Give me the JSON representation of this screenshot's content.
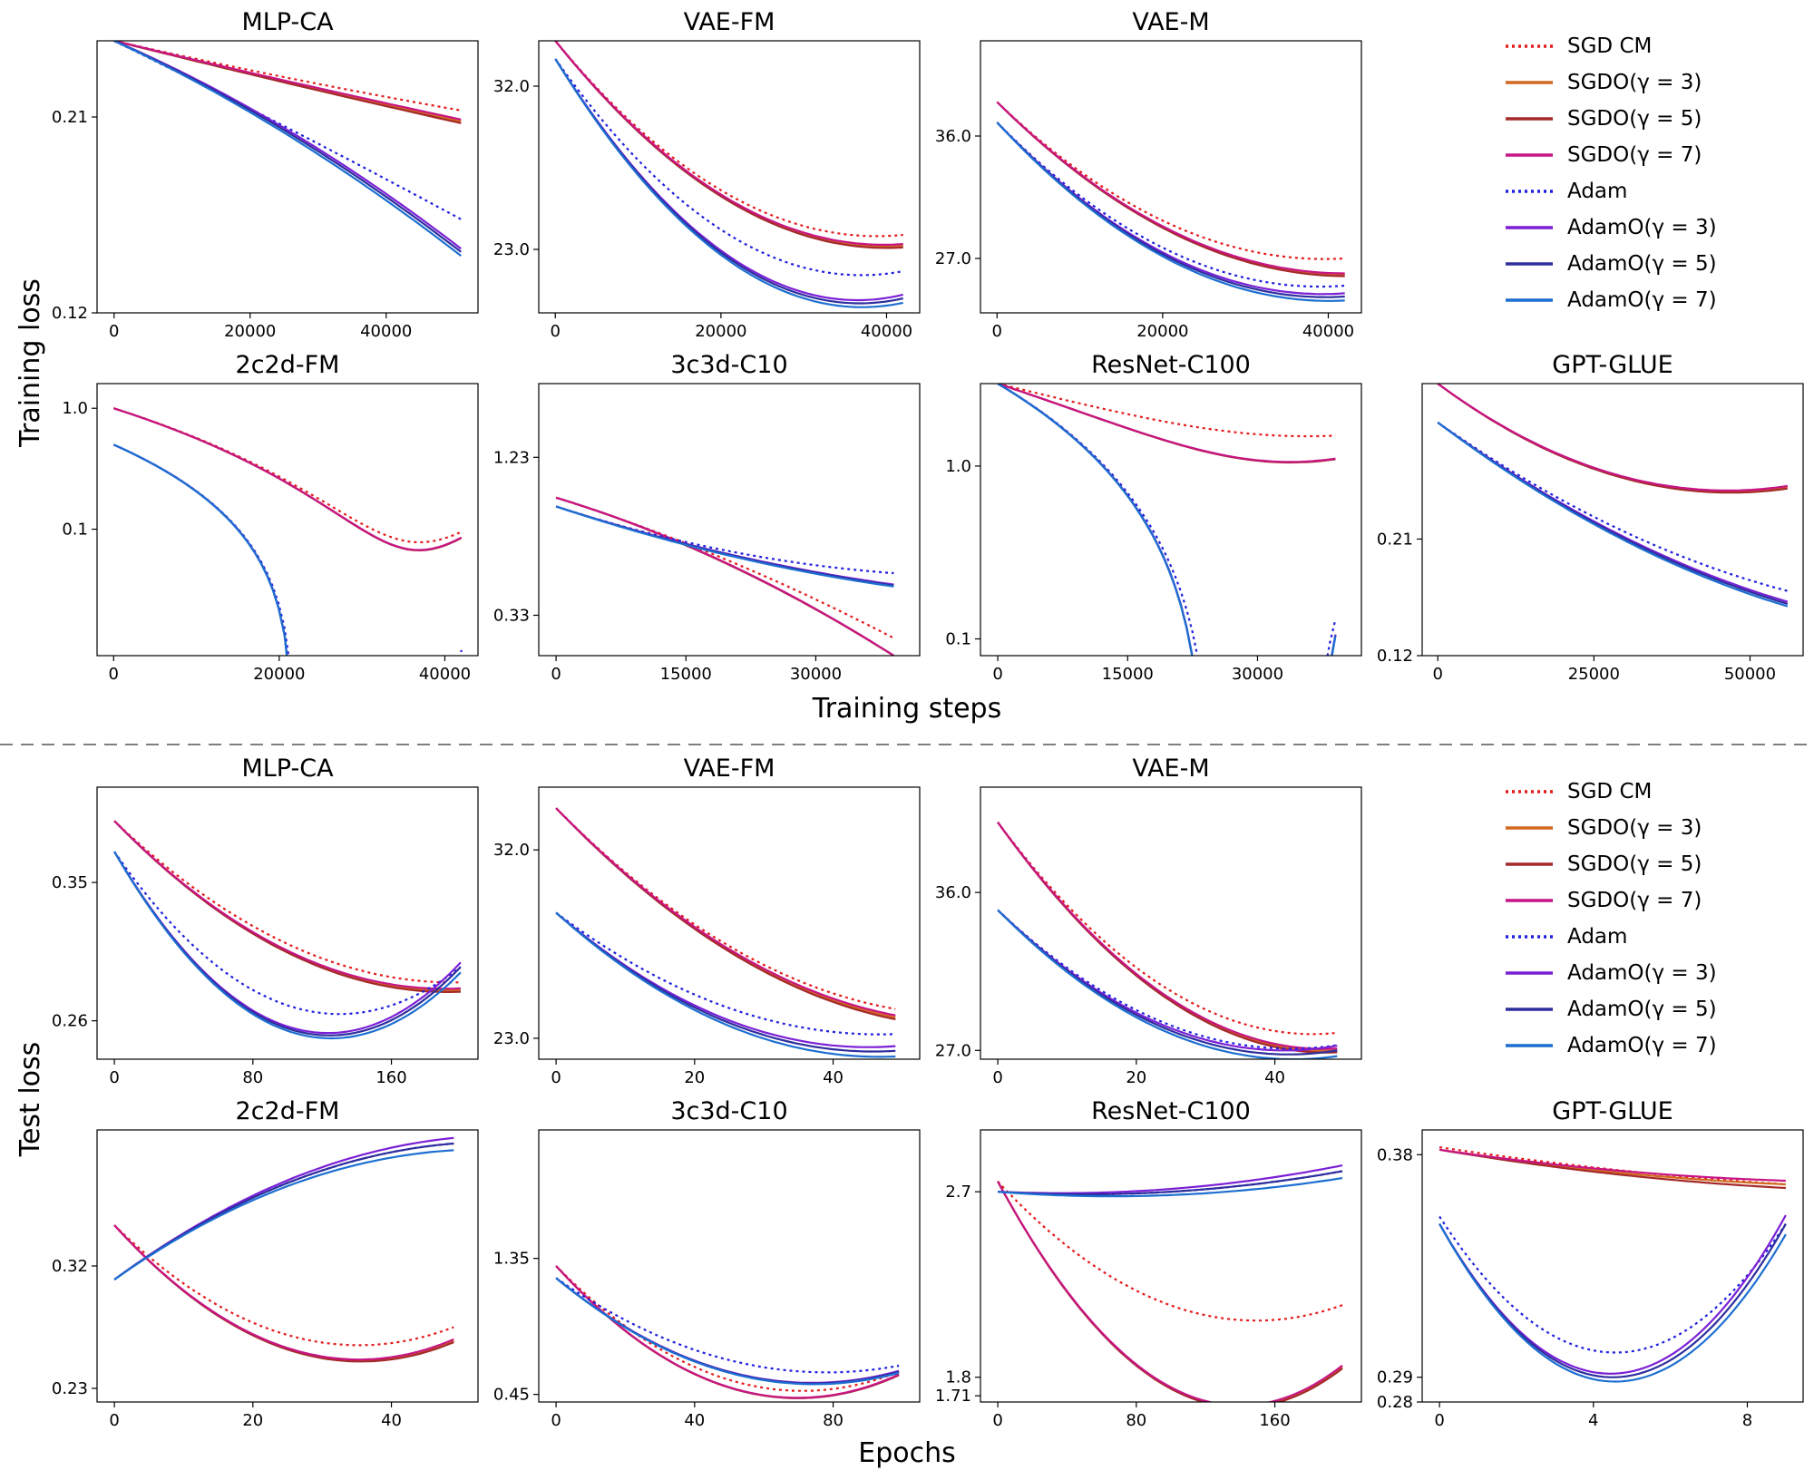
{
  "figure": {
    "top_ylabel": "Training loss",
    "top_xlabel": "Training steps",
    "bottom_ylabel": "Test loss",
    "bottom_xlabel": "Epochs"
  },
  "legend": [
    {
      "label": "SGD CM",
      "color": "#e41a1c",
      "dash": "dotted"
    },
    {
      "label": "SGDO(γ = 3)",
      "color": "#d2691e",
      "dash": "solid"
    },
    {
      "label": "SGDO(γ = 5)",
      "color": "#a52a2a",
      "dash": "solid"
    },
    {
      "label": "SGDO(γ = 7)",
      "color": "#c71585",
      "dash": "solid"
    },
    {
      "label": "Adam",
      "color": "#1f1fe0",
      "dash": "dotted"
    },
    {
      "label": "AdamO(γ = 3)",
      "color": "#7b1fd6",
      "dash": "solid"
    },
    {
      "label": "AdamO(γ = 5)",
      "color": "#2e2e9e",
      "dash": "solid"
    },
    {
      "label": "AdamO(γ = 7)",
      "color": "#1c6fd1",
      "dash": "solid"
    }
  ],
  "chart_data": [
    {
      "type": "line",
      "panel": "train",
      "title": "MLP-CA",
      "xlim": [
        -2500,
        53500
      ],
      "xticks": [
        0,
        20000,
        40000
      ],
      "ylim": [
        0.12,
        0.245
      ],
      "ytick_values": [
        0.21,
        0.12
      ],
      "ytick_labels": [
        "0.21",
        "0.12"
      ],
      "xmax": 51000,
      "curves": {
        "sgd": [
          0.245,
          0.228,
          0.213
        ],
        "sgdo": [
          0.245,
          0.226,
          0.208
        ],
        "adam": [
          0.245,
          0.205,
          0.163
        ],
        "adamo": [
          0.245,
          0.203,
          0.148
        ]
      }
    },
    {
      "type": "line",
      "panel": "train",
      "title": "VAE-FM",
      "xlim": [
        -2000,
        44000
      ],
      "xticks": [
        0,
        20000,
        40000
      ],
      "ylim": [
        19.5,
        34.5
      ],
      "ytick_values": [
        32.0,
        23.0
      ],
      "ytick_labels": [
        "32.0",
        "23.0"
      ],
      "xmax": 42000,
      "curves": {
        "sgd": [
          34.5,
          26.0,
          23.8
        ],
        "sgdo": [
          34.5,
          25.7,
          23.2
        ],
        "adam": [
          33.5,
          23.8,
          21.8
        ],
        "adamo": [
          33.5,
          22.5,
          20.3
        ]
      }
    },
    {
      "type": "line",
      "panel": "train",
      "title": "VAE-M",
      "xlim": [
        -2000,
        44000
      ],
      "xticks": [
        0,
        20000,
        40000
      ],
      "ylim": [
        23.0,
        43.0
      ],
      "ytick_values": [
        36.0,
        27.0
      ],
      "ytick_labels": [
        "36.0",
        "27.0"
      ],
      "xmax": 42000,
      "curves": {
        "sgd": [
          38.5,
          29.5,
          27.0
        ],
        "sgdo": [
          38.5,
          29.0,
          25.8
        ],
        "adam": [
          37.0,
          27.5,
          25.0
        ],
        "adamo": [
          37.0,
          27.0,
          24.2
        ]
      }
    },
    {
      "type": "line",
      "panel": "train",
      "title": "2c2d-FM",
      "xlim": [
        -2000,
        44000
      ],
      "xticks": [
        0,
        20000,
        40000
      ],
      "ylim": [
        0.009,
        1.6
      ],
      "yscale": "log",
      "ytick_values": [
        1.0,
        0.1
      ],
      "ytick_labels": [
        "1.0",
        "0.1"
      ],
      "xmax": 42000,
      "curves": {
        "sgd": [
          1.0,
          0.25,
          0.095
        ],
        "sgdo": [
          1.0,
          0.24,
          0.085
        ],
        "adam": [
          0.5,
          0.011,
          0.01
        ],
        "adamo": [
          0.5,
          0.009,
          0.008
        ]
      }
    },
    {
      "type": "line",
      "panel": "train",
      "title": "3c3d-C10",
      "xlim": [
        -2000,
        42000
      ],
      "xticks": [
        0,
        15000,
        30000
      ],
      "ylim": [
        0.1,
        1.65
      ],
      "ytick_values": [
        1.23,
        0.33
      ],
      "ytick_labels": [
        "1.23",
        "0.33"
      ],
      "xmax": 39000,
      "curves": {
        "sgd": [
          1.0,
          0.65,
          0.2
        ],
        "sgdo": [
          1.0,
          0.63,
          0.1
        ],
        "adam": [
          0.95,
          0.7,
          0.57
        ],
        "adamo": [
          0.95,
          0.68,
          0.5
        ]
      }
    },
    {
      "type": "line",
      "panel": "train",
      "title": "ResNet-C100",
      "xlim": [
        -2000,
        42000
      ],
      "xticks": [
        0,
        15000,
        30000
      ],
      "ylim": [
        0.08,
        3.0
      ],
      "yscale": "log",
      "ytick_values": [
        1.0,
        0.1
      ],
      "ytick_labels": [
        "1.0",
        "0.1"
      ],
      "xmax": 39000,
      "curves": {
        "sgd": [
          3.0,
          1.8,
          1.5
        ],
        "sgdo": [
          3.0,
          1.4,
          1.1
        ],
        "adam": [
          3.0,
          0.3,
          0.13
        ],
        "adamo": [
          3.0,
          0.27,
          0.105
        ]
      }
    },
    {
      "type": "line",
      "panel": "train",
      "title": "GPT-GLUE",
      "xlim": [
        -2500,
        58500
      ],
      "xticks": [
        0,
        25000,
        50000
      ],
      "ylim": [
        0.12,
        0.33
      ],
      "ytick_values": [
        0.21,
        0.12
      ],
      "ytick_labels": [
        "0.21",
        "0.12"
      ],
      "xmax": 56000,
      "curves": {
        "sgd": [
          0.33,
          0.26,
          0.25
        ],
        "sgdo": [
          0.33,
          0.26,
          0.25
        ],
        "adam": [
          0.3,
          0.22,
          0.17
        ],
        "adamo": [
          0.3,
          0.215,
          0.16
        ]
      }
    },
    {
      "type": "line",
      "panel": "test",
      "title": "MLP-CA",
      "xlim": [
        -10,
        210
      ],
      "xticks": [
        0,
        80,
        160
      ],
      "ylim": [
        0.235,
        0.412
      ],
      "ytick_values": [
        0.35,
        0.26
      ],
      "ytick_labels": [
        "0.35",
        "0.26"
      ],
      "xmax": 200,
      "curves": {
        "sgd": [
          0.39,
          0.31,
          0.285
        ],
        "sgdo": [
          0.39,
          0.305,
          0.28
        ],
        "adam": [
          0.37,
          0.27,
          0.295
        ],
        "adamo": [
          0.37,
          0.255,
          0.295
        ]
      }
    },
    {
      "type": "line",
      "panel": "test",
      "title": "VAE-FM",
      "xlim": [
        -2.5,
        52.5
      ],
      "xticks": [
        0,
        20,
        40
      ],
      "ylim": [
        22.0,
        35.0
      ],
      "ytick_values": [
        32.0,
        23.0
      ],
      "ytick_labels": [
        "32.0",
        "23.0"
      ],
      "xmax": 49,
      "curves": {
        "sgd": [
          34.0,
          27.5,
          24.4
        ],
        "sgdo": [
          34.0,
          27.3,
          24.0
        ],
        "adam": [
          29.0,
          24.5,
          23.2
        ],
        "adamo": [
          29.0,
          23.8,
          22.4
        ]
      }
    },
    {
      "type": "line",
      "panel": "test",
      "title": "VAE-M",
      "xlim": [
        -2.5,
        52.5
      ],
      "xticks": [
        0,
        20,
        40
      ],
      "ylim": [
        26.5,
        42.0
      ],
      "ytick_values": [
        36.0,
        27.0
      ],
      "ytick_labels": [
        "36.0",
        "27.0"
      ],
      "xmax": 49,
      "curves": {
        "sgd": [
          40.0,
          30.5,
          28.0
        ],
        "sgdo": [
          40.0,
          30.0,
          27.0
        ],
        "adam": [
          35.0,
          28.5,
          27.3
        ],
        "adamo": [
          35.0,
          28.2,
          27.0
        ]
      }
    },
    {
      "type": "line",
      "panel": "test",
      "title": "2c2d-FM",
      "xlim": [
        -2.5,
        52.5
      ],
      "xticks": [
        0,
        20,
        40
      ],
      "ylim": [
        0.22,
        0.42
      ],
      "ytick_values": [
        0.32,
        0.23
      ],
      "ytick_labels": [
        "0.32",
        "0.23"
      ],
      "xmax": 49,
      "curves": {
        "sgd": [
          0.35,
          0.27,
          0.275
        ],
        "sgdo": [
          0.35,
          0.26,
          0.265
        ],
        "adam": [
          0.31,
          0.38,
          0.41
        ],
        "adamo": [
          0.31,
          0.38,
          0.41
        ]
      }
    },
    {
      "type": "line",
      "panel": "test",
      "title": "3c3d-C10",
      "xlim": [
        -5,
        105
      ],
      "xticks": [
        0,
        40,
        80
      ],
      "ylim": [
        0.4,
        2.2
      ],
      "ytick_values": [
        1.35,
        0.45
      ],
      "ytick_labels": [
        "1.35",
        "0.45"
      ],
      "xmax": 99,
      "curves": {
        "sgd": [
          1.3,
          0.55,
          0.6
        ],
        "sgdo": [
          1.3,
          0.5,
          0.58
        ],
        "adam": [
          1.22,
          0.68,
          0.64
        ],
        "adamo": [
          1.22,
          0.6,
          0.6
        ]
      }
    },
    {
      "type": "line",
      "panel": "test",
      "title": "ResNet-C100",
      "xlim": [
        -10,
        210
      ],
      "xticks": [
        0,
        80,
        160
      ],
      "ylim": [
        1.68,
        3.0
      ],
      "ytick_values": [
        2.7,
        1.8,
        1.71
      ],
      "ytick_labels": [
        "2.7",
        "1.8",
        "1.71"
      ],
      "xmax": 199,
      "curves": {
        "sgd": [
          2.75,
          2.15,
          2.15
        ],
        "sgdo": [
          2.75,
          1.75,
          1.85
        ],
        "adam": [
          2.7,
          2.7,
          2.8
        ],
        "adamo": [
          2.7,
          2.7,
          2.8
        ]
      }
    },
    {
      "type": "line",
      "panel": "test",
      "title": "GPT-GLUE",
      "xlim": [
        -0.45,
        9.45
      ],
      "xticks": [
        0,
        4,
        8
      ],
      "ylim": [
        0.28,
        0.39
      ],
      "ytick_values": [
        0.38,
        0.29,
        0.28
      ],
      "ytick_labels": [
        "0.38",
        "0.29",
        "0.28"
      ],
      "xmax": 9,
      "curves": {
        "sgd": [
          0.383,
          0.374,
          0.368
        ],
        "sgdo": [
          0.382,
          0.373,
          0.368
        ],
        "adam": [
          0.355,
          0.3,
          0.352
        ],
        "adamo": [
          0.352,
          0.29,
          0.352
        ]
      }
    }
  ]
}
